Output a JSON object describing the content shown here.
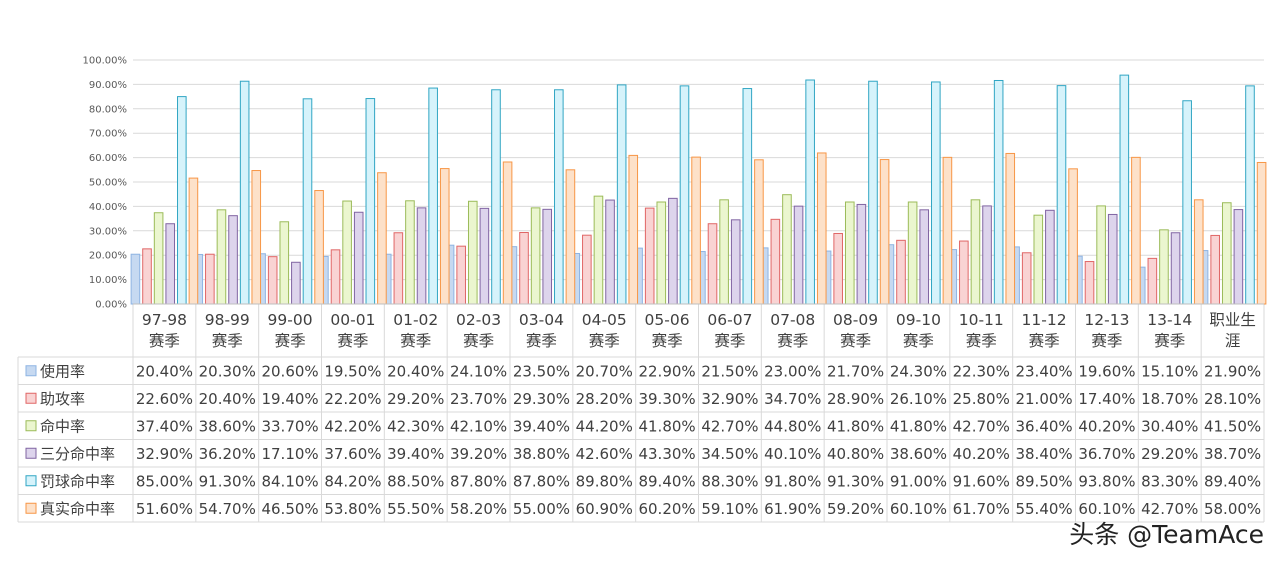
{
  "chart_data": {
    "type": "bar",
    "title": "",
    "xlabel": "",
    "ylabel": "",
    "ylim": [
      0,
      100
    ],
    "ytick_step": 10,
    "ytick_format": "percent_2dp",
    "grid": true,
    "legend": "table-left",
    "categories": [
      "97-98 赛季",
      "98-99 赛季",
      "99-00 赛季",
      "00-01 赛季",
      "01-02 赛季",
      "02-03 赛季",
      "03-04 赛季",
      "04-05 赛季",
      "05-06 赛季",
      "06-07 赛季",
      "07-08 赛季",
      "08-09 赛季",
      "09-10 赛季",
      "10-11 赛季",
      "11-12 赛季",
      "12-13 赛季",
      "13-14 赛季",
      "职业生 涯"
    ],
    "series": [
      {
        "name": "使用率",
        "color": "#c6d9f1",
        "border": "#8eb4e3",
        "values": [
          20.4,
          20.3,
          20.6,
          19.5,
          20.4,
          24.1,
          23.5,
          20.7,
          22.9,
          21.5,
          23.0,
          21.7,
          24.3,
          22.3,
          23.4,
          19.6,
          15.1,
          21.9
        ]
      },
      {
        "name": "助攻率",
        "color": "#f9d3d3",
        "border": "#e06666",
        "values": [
          22.6,
          20.4,
          19.4,
          22.2,
          29.2,
          23.7,
          29.3,
          28.2,
          39.3,
          32.9,
          34.7,
          28.9,
          26.1,
          25.8,
          21.0,
          17.4,
          18.7,
          28.1
        ]
      },
      {
        "name": "命中率",
        "color": "#ebf6cf",
        "border": "#9bbb59",
        "values": [
          37.4,
          38.6,
          33.7,
          42.2,
          42.3,
          42.1,
          39.4,
          44.2,
          41.8,
          42.7,
          44.8,
          41.8,
          41.8,
          42.7,
          36.4,
          40.2,
          30.4,
          41.5
        ]
      },
      {
        "name": "三分命中率",
        "color": "#ddd4ec",
        "border": "#8064a2",
        "values": [
          32.9,
          36.2,
          17.1,
          37.6,
          39.4,
          39.2,
          38.8,
          42.6,
          43.3,
          34.5,
          40.1,
          40.8,
          38.6,
          40.2,
          38.4,
          36.7,
          29.2,
          38.7
        ]
      },
      {
        "name": "罚球命中率",
        "color": "#d6f3fb",
        "border": "#31a6c4",
        "values": [
          85.0,
          91.3,
          84.1,
          84.2,
          88.5,
          87.8,
          87.8,
          89.8,
          89.4,
          88.3,
          91.8,
          91.3,
          91.0,
          91.6,
          89.5,
          93.8,
          83.3,
          89.4
        ]
      },
      {
        "name": "真实命中率",
        "color": "#fde1c9",
        "border": "#f79646",
        "values": [
          51.6,
          54.7,
          46.5,
          53.8,
          55.5,
          58.2,
          55.0,
          60.9,
          60.2,
          59.1,
          61.9,
          59.2,
          60.1,
          61.7,
          55.4,
          60.1,
          42.7,
          58.0
        ]
      }
    ],
    "table": {
      "rows": [
        [
          "20.40%",
          "20.30%",
          "20.60%",
          "19.50%",
          "20.40%",
          "24.10%",
          "23.50%",
          "20.70%",
          "22.90%",
          "21.50%",
          "23.00%",
          "21.70%",
          "24.30%",
          "22.30%",
          "23.40%",
          "19.60%",
          "15.10%",
          "21.90%"
        ],
        [
          "22.60%",
          "20.40%",
          "19.40%",
          "22.20%",
          "29.20%",
          "23.70%",
          "29.30%",
          "28.20%",
          "39.30%",
          "32.90%",
          "34.70%",
          "28.90%",
          "26.10%",
          "25.80%",
          "21.00%",
          "17.40%",
          "18.70%",
          "28.10%"
        ],
        [
          "37.40%",
          "38.60%",
          "33.70%",
          "42.20%",
          "42.30%",
          "42.10%",
          "39.40%",
          "44.20%",
          "41.80%",
          "42.70%",
          "44.80%",
          "41.80%",
          "41.80%",
          "42.70%",
          "36.40%",
          "40.20%",
          "30.40%",
          "41.50%"
        ],
        [
          "32.90%",
          "36.20%",
          "17.10%",
          "37.60%",
          "39.40%",
          "39.20%",
          "38.80%",
          "42.60%",
          "43.30%",
          "34.50%",
          "40.10%",
          "40.80%",
          "38.60%",
          "40.20%",
          "38.40%",
          "36.70%",
          "29.20%",
          "38.70%"
        ],
        [
          "85.00%",
          "91.30%",
          "84.10%",
          "84.20%",
          "88.50%",
          "87.80%",
          "87.80%",
          "89.80%",
          "89.40%",
          "88.30%",
          "91.80%",
          "91.30%",
          "91.00%",
          "91.60%",
          "89.50%",
          "93.80%",
          "83.30%",
          "89.40%"
        ],
        [
          "51.60%",
          "54.70%",
          "46.50%",
          "53.80%",
          "55.50%",
          "58.20%",
          "55.00%",
          "60.90%",
          "60.20%",
          "59.10%",
          "61.90%",
          "59.20%",
          "60.10%",
          "61.70%",
          "55.40%",
          "60.10%",
          "42.70%",
          "58.00%"
        ]
      ]
    }
  },
  "watermark": "头条 @TeamAce"
}
